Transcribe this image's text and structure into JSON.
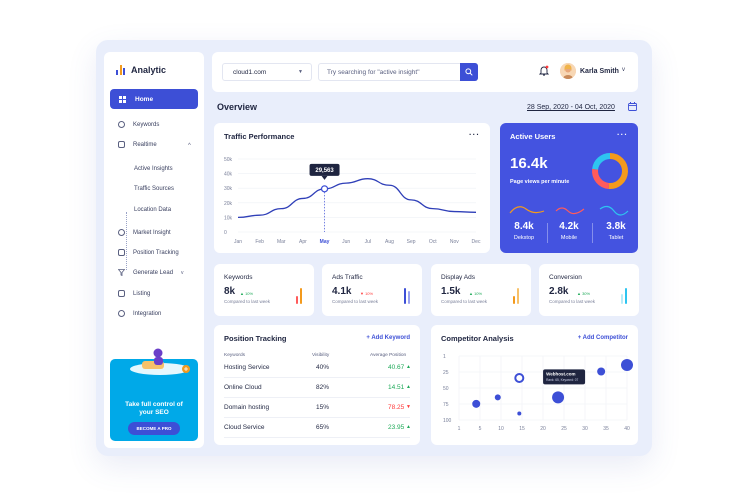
{
  "app": {
    "name": "Analytic"
  },
  "sidebar": {
    "home_label": "Home",
    "items": [
      "Keywords",
      "Realtime",
      "Market Insight",
      "Position Tracking",
      "Generate Lead",
      "Listing",
      "Integration"
    ],
    "realtime_subitems": [
      "Active Insights",
      "Traffic Sources",
      "Location Data"
    ],
    "promo": {
      "line1": "Take full control of",
      "line2": "your SEO",
      "button": "BECOME A PRO"
    }
  },
  "topbar": {
    "domain": "cloud1.com",
    "search_placeholder": "Try searching for \"active insight\"",
    "user_name": "Karla Smith"
  },
  "overview": {
    "title": "Overview",
    "date_range": "28 Sep, 2020 - 04 Oct, 2020"
  },
  "traffic": {
    "title": "Traffic Performance",
    "tooltip": "29,563",
    "y_ticks": [
      "50k",
      "40k",
      "30k",
      "20k",
      "10k",
      "0"
    ],
    "x_ticks": [
      "Jan",
      "Feb",
      "Mar",
      "Apr",
      "May",
      "Jun",
      "Jul",
      "Aug",
      "Sep",
      "Oct",
      "Nov",
      "Dec"
    ],
    "active_month": "May"
  },
  "active_users": {
    "title": "Active Users",
    "value": "16.4k",
    "subtitle": "Page views per minute",
    "stats": [
      {
        "value": "8.4k",
        "label": "Dekstop",
        "color": "#f39a1d"
      },
      {
        "value": "4.2k",
        "label": "Mobile",
        "color": "#ff5b5b"
      },
      {
        "value": "3.8k",
        "label": "Tablet",
        "color": "#2ec5f0"
      }
    ]
  },
  "kpis": [
    {
      "title": "Keywords",
      "value": "8k",
      "delta": "▲ 10%",
      "delta_color": "#1faa59",
      "compare": "Compared to last week",
      "bar_colors": [
        "#ff5b5b",
        "#f39a1d"
      ],
      "bar_levels": [
        0.5,
        1.0
      ]
    },
    {
      "title": "Ads Traffic",
      "value": "4.1k",
      "delta": "▼ 10%",
      "delta_color": "#ff3b3b",
      "compare": "Compared to last week",
      "bar_colors": [
        "#3d4fd6",
        "#9aa3f0"
      ],
      "bar_levels": [
        1.0,
        0.8
      ]
    },
    {
      "title": "Display Ads",
      "value": "1.5k",
      "delta": "▲ 10%",
      "delta_color": "#1faa59",
      "compare": "Compared to last week",
      "bar_colors": [
        "#f39a1d",
        "#f7c16a"
      ],
      "bar_levels": [
        0.5,
        1.0
      ]
    },
    {
      "title": "Conversion",
      "value": "2.8k",
      "delta": "▲ 30%",
      "delta_color": "#1faa59",
      "compare": "Compared to last week",
      "bar_colors": [
        "#b8ecf8",
        "#2ec5f0"
      ],
      "bar_levels": [
        0.6,
        1.0
      ]
    }
  ],
  "position_tracking": {
    "title": "Position Tracking",
    "link": "+ Add Keyword",
    "headers": [
      "Keywords",
      "Visibility",
      "Average Position"
    ],
    "rows": [
      {
        "keyword": "Hosting Service",
        "visibility": "40%",
        "position": "40.67",
        "trend": "up"
      },
      {
        "keyword": "Online Cloud",
        "visibility": "82%",
        "position": "14.51",
        "trend": "up"
      },
      {
        "keyword": "Domain hosting",
        "visibility": "15%",
        "position": "78.25",
        "trend": "down"
      },
      {
        "keyword": "Cloud Service",
        "visibility": "65%",
        "position": "23.95",
        "trend": "up"
      }
    ]
  },
  "competitor": {
    "title": "Competitor Analysis",
    "link": "+ Add Competitor",
    "tooltip_title": "Webhost.com",
    "tooltip_sub": "Rank: 65, Keyword: 07"
  },
  "chart_data": [
    {
      "type": "line",
      "title": "Traffic Performance",
      "x": [
        "Jan",
        "Feb",
        "Mar",
        "Apr",
        "May",
        "Jun",
        "Jul",
        "Aug",
        "Sep",
        "Oct",
        "Nov",
        "Dec"
      ],
      "series": [
        {
          "values": [
            10000,
            11500,
            16000,
            23000,
            29563,
            33500,
            36500,
            32000,
            22000,
            16000,
            14000,
            13500
          ]
        }
      ],
      "ylim": [
        0,
        50000
      ],
      "highlight": {
        "x": "May",
        "value": 29563
      }
    },
    {
      "type": "pie",
      "title": "Active Users",
      "categories": [
        "Dekstop",
        "Mobile",
        "Tablet"
      ],
      "values": [
        8.4,
        4.2,
        3.8
      ]
    },
    {
      "type": "scatter",
      "title": "Competitor Analysis",
      "x_ticks": [
        "1",
        "5",
        "10",
        "15",
        "20",
        "25",
        "30",
        "35",
        "40"
      ],
      "y_ticks": [
        "1",
        "25",
        "50",
        "75",
        "100"
      ],
      "xlim": [
        1,
        40
      ],
      "ylim": [
        1,
        100
      ],
      "y_inverted": true,
      "points": [
        {
          "x": 5,
          "y": 75,
          "size": 4
        },
        {
          "x": 10,
          "y": 65,
          "size": 3
        },
        {
          "x": 15,
          "y": 35,
          "size": 4
        },
        {
          "x": 15,
          "y": 90,
          "size": 2
        },
        {
          "x": 24,
          "y": 65,
          "size": 6
        },
        {
          "x": 34,
          "y": 25,
          "size": 4
        },
        {
          "x": 40,
          "y": 15,
          "size": 6
        }
      ]
    }
  ]
}
